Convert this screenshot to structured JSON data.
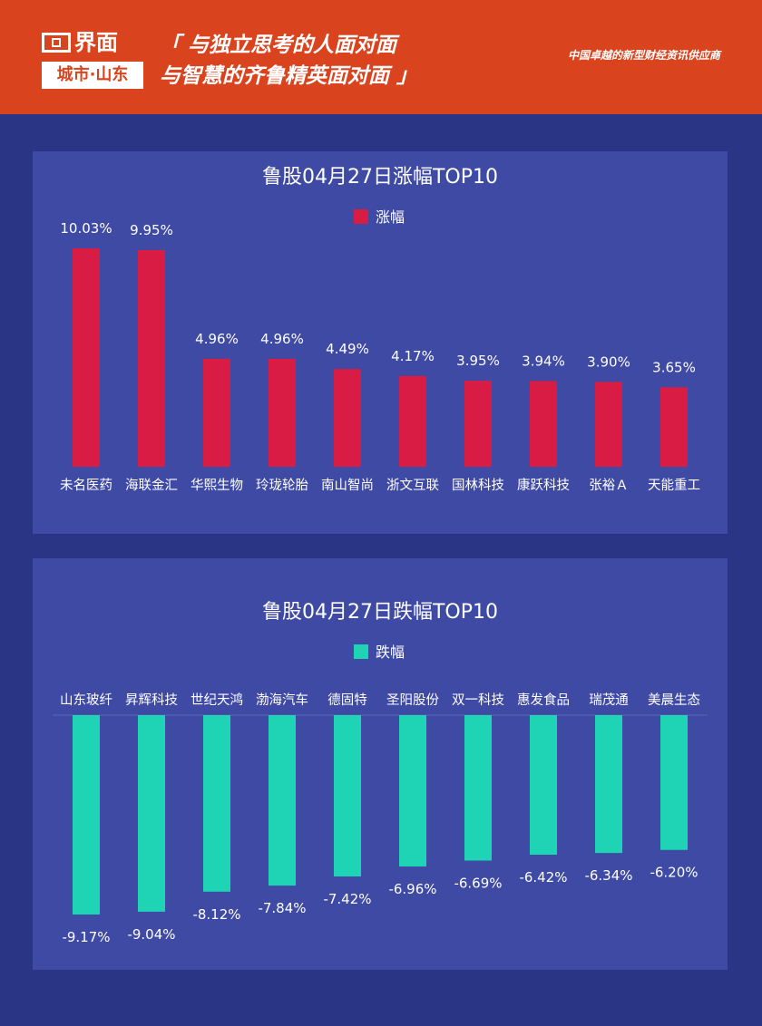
{
  "header": {
    "logo_text": "界面",
    "logo_sub": "城市·山东",
    "slogan_line1": "「 与独立思考的人面对面",
    "slogan_line2": "与智慧的齐鲁精英面对面 」",
    "tagline": "中国卓越的新型财经资讯供应商",
    "colors": {
      "header_bg": "#d9441f",
      "page_bg": "#2a3585",
      "panel_bg": "#3e4aa4"
    }
  },
  "chart_data": [
    {
      "type": "bar",
      "title": "鲁股04月27日涨幅TOP10",
      "legend": "涨幅",
      "color": "#d81c43",
      "categories": [
        "未名医药",
        "海联金汇",
        "华熙生物",
        "玲珑轮胎",
        "南山智尚",
        "浙文互联",
        "国林科技",
        "康跃科技",
        "张裕Ａ",
        "天能重工"
      ],
      "values": [
        10.03,
        9.95,
        4.96,
        4.96,
        4.49,
        4.17,
        3.95,
        3.94,
        3.9,
        3.65
      ],
      "labels": [
        "10.03%",
        "9.95%",
        "4.96%",
        "4.96%",
        "4.49%",
        "4.17%",
        "3.95%",
        "3.94%",
        "3.90%",
        "3.65%"
      ],
      "ylim": [
        0,
        10.03
      ],
      "legend_position": "top-center",
      "grid": false
    },
    {
      "type": "bar",
      "title": "鲁股04月27日跌幅TOP10",
      "legend": "跌幅",
      "color": "#1ed4b4",
      "categories": [
        "山东玻纤",
        "昇辉科技",
        "世纪天鸿",
        "渤海汽车",
        "德固特",
        "圣阳股份",
        "双一科技",
        "惠发食品",
        "瑞茂通",
        "美晨生态"
      ],
      "values": [
        -9.17,
        -9.04,
        -8.12,
        -7.84,
        -7.42,
        -6.96,
        -6.69,
        -6.42,
        -6.34,
        -6.2
      ],
      "labels": [
        "-9.17%",
        "-9.04%",
        "-8.12%",
        "-7.84%",
        "-7.42%",
        "-6.96%",
        "-6.69%",
        "-6.42%",
        "-6.34%",
        "-6.20%"
      ],
      "ylim": [
        -9.17,
        0
      ],
      "legend_position": "top-center",
      "grid": false
    }
  ]
}
